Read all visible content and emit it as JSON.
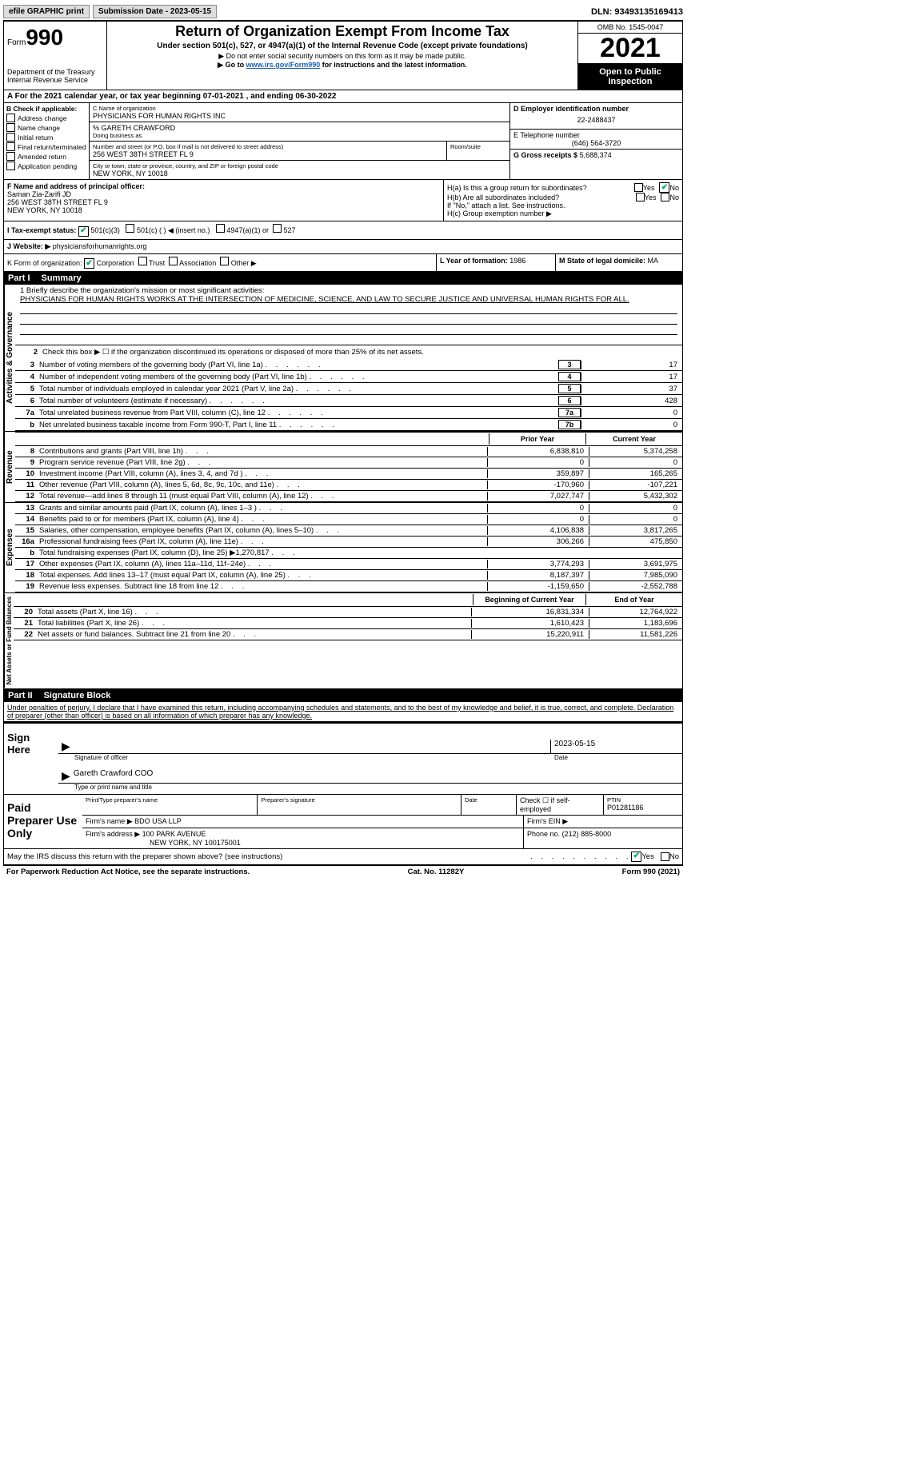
{
  "topbar": {
    "efile": "efile GRAPHIC print",
    "submission": "Submission Date - 2023-05-15",
    "dln": "DLN: 93493135169413"
  },
  "header": {
    "form_prefix": "Form",
    "form_num": "990",
    "dept": "Department of the Treasury",
    "irs": "Internal Revenue Service",
    "title": "Return of Organization Exempt From Income Tax",
    "sub": "Under section 501(c), 527, or 4947(a)(1) of the Internal Revenue Code (except private foundations)",
    "note1": "▶ Do not enter social security numbers on this form as it may be made public.",
    "note2_prefix": "▶ Go to ",
    "note2_link": "www.irs.gov/Form990",
    "note2_suffix": " for instructions and the latest information.",
    "omb": "OMB No. 1545-0047",
    "year": "2021",
    "open": "Open to Public Inspection"
  },
  "period": "A For the 2021 calendar year, or tax year beginning 07-01-2021    , and ending 06-30-2022",
  "boxB": {
    "title": "B Check if applicable:",
    "items": [
      "Address change",
      "Name change",
      "Initial return",
      "Final return/terminated",
      "Amended return",
      "Application pending"
    ]
  },
  "boxC": {
    "name_lbl": "C Name of organization",
    "name": "PHYSICIANS FOR HUMAN RIGHTS INC",
    "care": "% GARETH CRAWFORD",
    "dba_lbl": "Doing business as",
    "addr_lbl": "Number and street (or P.O. box if mail is not delivered to street address)",
    "room_lbl": "Room/suite",
    "addr": "256 WEST 38TH STREET FL 9",
    "city_lbl": "City or town, state or province, country, and ZIP or foreign postal code",
    "city": "NEW YORK, NY  10018"
  },
  "boxD": {
    "lbl": "D Employer identification number",
    "val": "22-2488437"
  },
  "boxE": {
    "lbl": "E Telephone number",
    "val": "(646) 564-3720"
  },
  "boxG": {
    "lbl": "G Gross receipts $",
    "val": "5,688,374"
  },
  "boxF": {
    "lbl": "F  Name and address of principal officer:",
    "name": "Saman Zia-Zarifi JD",
    "addr1": "256 WEST 38TH STREET FL 9",
    "addr2": "NEW YORK, NY  10018"
  },
  "boxH": {
    "a": "H(a)  Is this a group return for subordinates?",
    "b": "H(b)  Are all subordinates included?",
    "b_note": "If \"No,\" attach a list. See instructions.",
    "c": "H(c)  Group exemption number ▶"
  },
  "boxI": {
    "lbl": "I    Tax-exempt status:",
    "o1": "501(c)(3)",
    "o2": "501(c) (  ) ◀ (insert no.)",
    "o3": "4947(a)(1) or",
    "o4": "527"
  },
  "boxJ": {
    "lbl": "J   Website: ▶",
    "val": "physiciansforhumanrights.org"
  },
  "boxK": {
    "lbl": "K Form of organization:",
    "o1": "Corporation",
    "o2": "Trust",
    "o3": "Association",
    "o4": "Other ▶"
  },
  "boxL": {
    "lbl": "L Year of formation:",
    "val": "1986"
  },
  "boxM": {
    "lbl": "M State of legal domicile:",
    "val": "MA"
  },
  "part1": {
    "label": "Part I",
    "title": "Summary",
    "mission_lbl": "1   Briefly describe the organization's mission or most significant activities:",
    "mission": "PHYSICIANS FOR HUMAN RIGHTS WORKS AT THE INTERSECTION OF MEDICINE, SCIENCE, AND LAW TO SECURE JUSTICE AND UNIVERSAL HUMAN RIGHTS FOR ALL.",
    "line2": "Check this box ▶ ☐  if the organization discontinued its operations or disposed of more than 25% of its net assets.",
    "sections": {
      "governance": "Activities & Governance",
      "revenue": "Revenue",
      "expenses": "Expenses",
      "net": "Net Assets or Fund Balances"
    },
    "gov_lines": [
      {
        "n": "3",
        "t": "Number of voting members of the governing body (Part VI, line 1a)",
        "b": "3",
        "v": "17"
      },
      {
        "n": "4",
        "t": "Number of independent voting members of the governing body (Part VI, line 1b)",
        "b": "4",
        "v": "17"
      },
      {
        "n": "5",
        "t": "Total number of individuals employed in calendar year 2021 (Part V, line 2a)",
        "b": "5",
        "v": "37"
      },
      {
        "n": "6",
        "t": "Total number of volunteers (estimate if necessary)",
        "b": "6",
        "v": "428"
      },
      {
        "n": "7a",
        "t": "Total unrelated business revenue from Part VIII, column (C), line 12",
        "b": "7a",
        "v": "0"
      },
      {
        "n": "b",
        "t": "Net unrelated business taxable income from Form 990-T, Part I, line 11",
        "b": "7b",
        "v": "0"
      }
    ],
    "col_hdr_prior": "Prior Year",
    "col_hdr_curr": "Current Year",
    "rev_lines": [
      {
        "n": "8",
        "t": "Contributions and grants (Part VIII, line 1h)",
        "p": "6,838,810",
        "c": "5,374,258"
      },
      {
        "n": "9",
        "t": "Program service revenue (Part VIII, line 2g)",
        "p": "0",
        "c": "0"
      },
      {
        "n": "10",
        "t": "Investment income (Part VIII, column (A), lines 3, 4, and 7d )",
        "p": "359,897",
        "c": "165,265"
      },
      {
        "n": "11",
        "t": "Other revenue (Part VIII, column (A), lines 5, 6d, 8c, 9c, 10c, and 11e)",
        "p": "-170,960",
        "c": "-107,221"
      },
      {
        "n": "12",
        "t": "Total revenue—add lines 8 through 11 (must equal Part VIII, column (A), line 12)",
        "p": "7,027,747",
        "c": "5,432,302"
      }
    ],
    "exp_lines": [
      {
        "n": "13",
        "t": "Grants and similar amounts paid (Part IX, column (A), lines 1–3 )",
        "p": "0",
        "c": "0"
      },
      {
        "n": "14",
        "t": "Benefits paid to or for members (Part IX, column (A), line 4)",
        "p": "0",
        "c": "0"
      },
      {
        "n": "15",
        "t": "Salaries, other compensation, employee benefits (Part IX, column (A), lines 5–10)",
        "p": "4,106,838",
        "c": "3,817,265"
      },
      {
        "n": "16a",
        "t": "Professional fundraising fees (Part IX, column (A), line 11e)",
        "p": "306,266",
        "c": "475,850"
      },
      {
        "n": "b",
        "t": "Total fundraising expenses (Part IX, column (D), line 25) ▶1,270,817",
        "p": "",
        "c": "",
        "shade": true
      },
      {
        "n": "17",
        "t": "Other expenses (Part IX, column (A), lines 11a–11d, 11f–24e)",
        "p": "3,774,293",
        "c": "3,691,975"
      },
      {
        "n": "18",
        "t": "Total expenses. Add lines 13–17 (must equal Part IX, column (A), line 25)",
        "p": "8,187,397",
        "c": "7,985,090"
      },
      {
        "n": "19",
        "t": "Revenue less expenses. Subtract line 18 from line 12",
        "p": "-1,159,650",
        "c": "-2,552,788"
      }
    ],
    "net_hdr_prior": "Beginning of Current Year",
    "net_hdr_curr": "End of Year",
    "net_lines": [
      {
        "n": "20",
        "t": "Total assets (Part X, line 16)",
        "p": "16,831,334",
        "c": "12,764,922"
      },
      {
        "n": "21",
        "t": "Total liabilities (Part X, line 26)",
        "p": "1,610,423",
        "c": "1,183,696"
      },
      {
        "n": "22",
        "t": "Net assets or fund balances. Subtract line 21 from line 20",
        "p": "15,220,911",
        "c": "11,581,226"
      }
    ]
  },
  "part2": {
    "label": "Part II",
    "title": "Signature Block",
    "penalty": "Under penalties of perjury, I declare that I have examined this return, including accompanying schedules and statements, and to the best of my knowledge and belief, it is true, correct, and complete. Declaration of preparer (other than officer) is based on all information of which preparer has any knowledge.",
    "sign_here": "Sign Here",
    "sig_officer": "Signature of officer",
    "sig_date": "2023-05-15",
    "date_lbl": "Date",
    "printed": "Gareth Crawford COO",
    "printed_lbl": "Type or print name and title",
    "paid": "Paid Preparer Use Only",
    "prep_name_lbl": "Print/Type preparer's name",
    "prep_sig_lbl": "Preparer's signature",
    "check_self": "Check ☐ if self-employed",
    "ptin_lbl": "PTIN",
    "ptin": "P01281186",
    "firm_name_lbl": "Firm's name   ▶",
    "firm_name": "BDO USA LLP",
    "firm_ein_lbl": "Firm's EIN ▶",
    "firm_addr_lbl": "Firm's address ▶",
    "firm_addr": "100 PARK AVENUE",
    "firm_city": "NEW YORK, NY  100175001",
    "firm_phone_lbl": "Phone no.",
    "firm_phone": "(212) 885-8000",
    "discuss": "May the IRS discuss this return with the preparer shown above? (see instructions)"
  },
  "footer": {
    "left": "For Paperwork Reduction Act Notice, see the separate instructions.",
    "mid": "Cat. No. 11282Y",
    "right": "Form 990 (2021)"
  },
  "yes": "Yes",
  "no": "No"
}
